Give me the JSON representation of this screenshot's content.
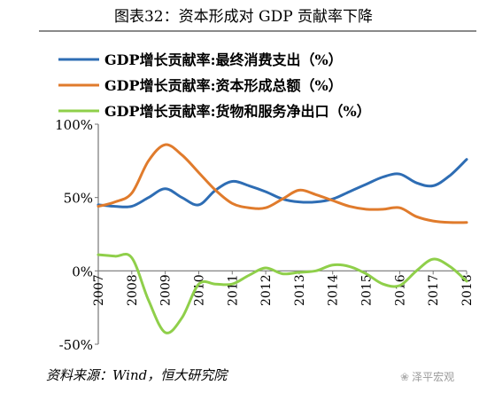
{
  "title": "图表32：资本形成对 GDP 贡献率下降",
  "source": "资料来源：Wind，恒大研究院",
  "watermark": "泽平宏观",
  "chart_data": {
    "type": "line",
    "title": "图表32：资本形成对 GDP 贡献率下降",
    "xlabel": "",
    "ylabel": "",
    "x": [
      2007,
      2007.5,
      2008,
      2008.5,
      2009,
      2009.5,
      2010,
      2010.5,
      2011,
      2011.5,
      2012,
      2012.5,
      2013,
      2013.5,
      2014,
      2014.5,
      2015,
      2015.5,
      2016,
      2016.5,
      2017,
      2017.5,
      2018
    ],
    "x_ticks": [
      "2007",
      "2008",
      "2009",
      "2010",
      "2011",
      "2012",
      "2013",
      "2014",
      "2015",
      "2016",
      "2017",
      "2018"
    ],
    "y_ticks": [
      "100%",
      "50%",
      "0%",
      "-50%"
    ],
    "ylim": [
      -50,
      100
    ],
    "legend_position": "top",
    "grid": false,
    "series": [
      {
        "name": "GDP增长贡献率:最终消费支出（%）",
        "color": "#2e6db4",
        "values": [
          45,
          44,
          44,
          50,
          56,
          50,
          45,
          55,
          61,
          58,
          54,
          49,
          47,
          47,
          49,
          54,
          59,
          64,
          66,
          60,
          58,
          65,
          76
        ]
      },
      {
        "name": "GDP增长贡献率:资本形成总额（%）",
        "color": "#e07b2c",
        "values": [
          44,
          47,
          53,
          75,
          86,
          79,
          67,
          55,
          46,
          43,
          43,
          49,
          55,
          52,
          48,
          44,
          42,
          42,
          43,
          37,
          34,
          33,
          33
        ]
      },
      {
        "name": "GDP增长贡献率:货物和服务净出口（%）",
        "color": "#8fcf4a",
        "values": [
          11,
          10,
          9,
          -20,
          -42,
          -32,
          -9,
          -9,
          -9,
          -3,
          2,
          -2,
          -1,
          0,
          4,
          3,
          -2,
          -9,
          -10,
          0,
          8,
          3,
          -7
        ]
      }
    ]
  }
}
